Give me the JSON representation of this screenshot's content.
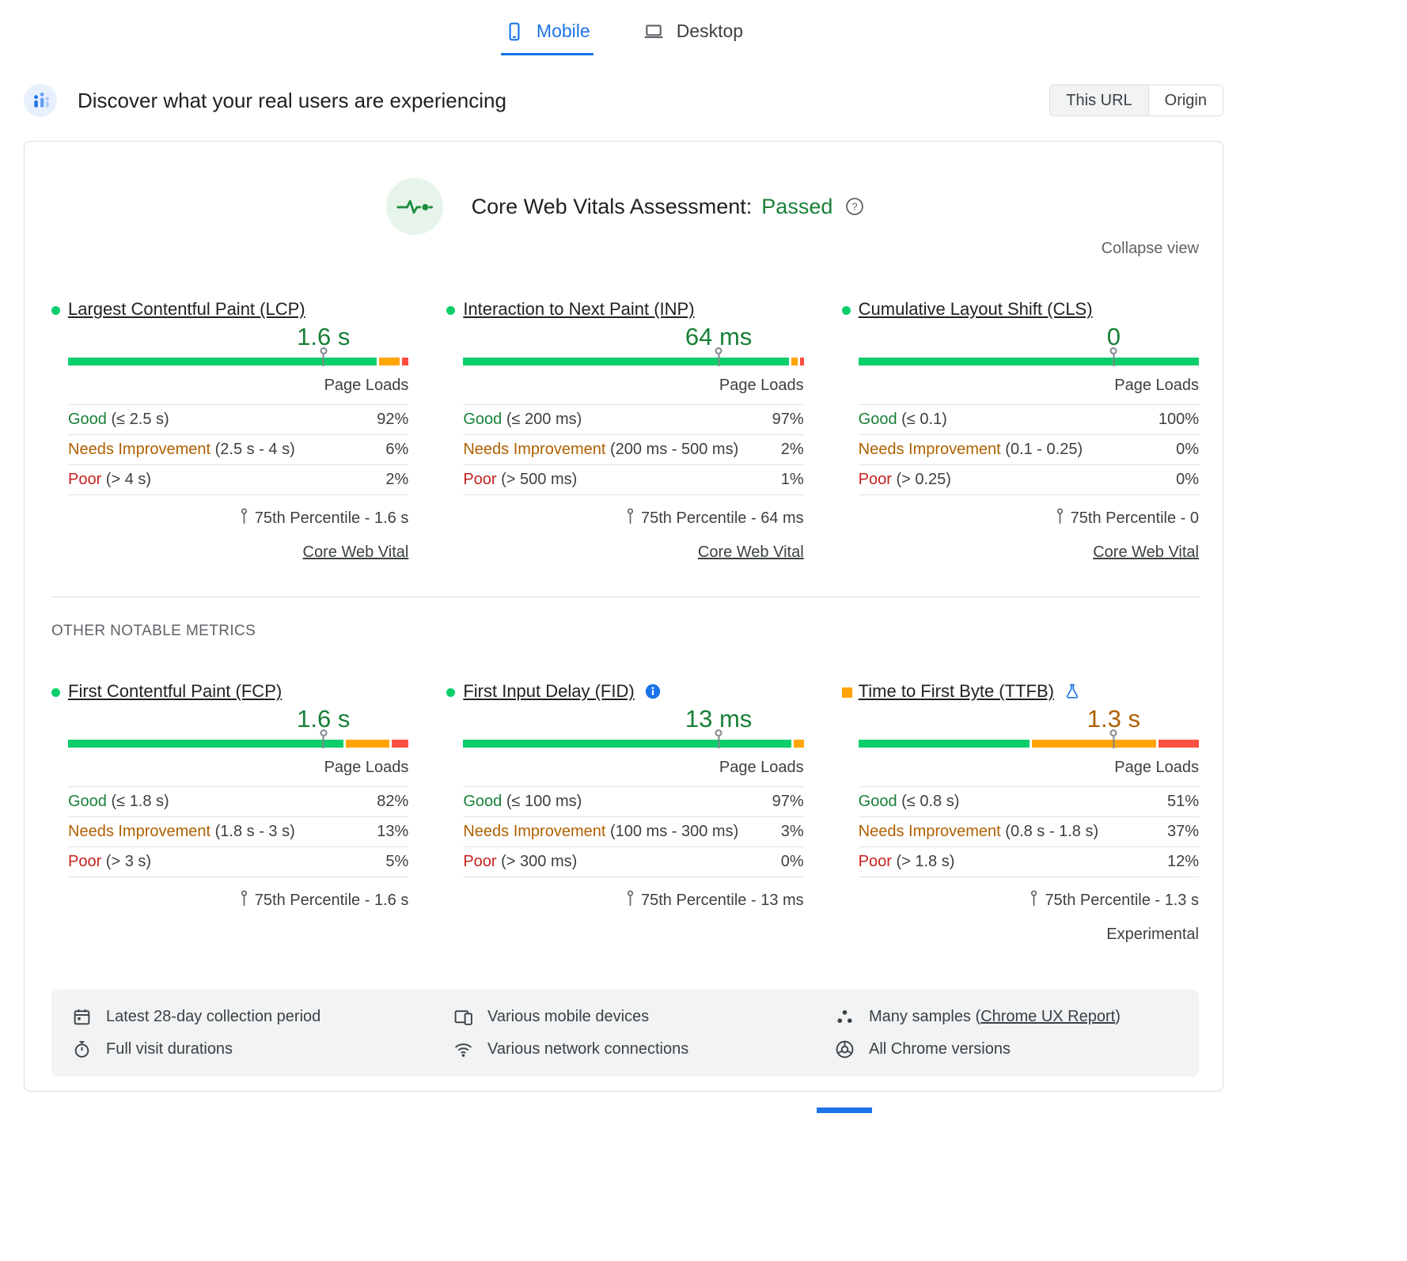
{
  "colors": {
    "good_bar": "#0cce6b",
    "ni_bar": "#ffa400",
    "poor_bar": "#ff4e42",
    "good_text": "#188038",
    "ni_text": "#b06000",
    "poor_text": "#c5221f",
    "accent_blue": "#1a73e8"
  },
  "tabs": {
    "mobile": "Mobile",
    "desktop": "Desktop"
  },
  "header": {
    "title": "Discover what your real users are experiencing",
    "this_url": "This URL",
    "origin": "Origin"
  },
  "assessment": {
    "label": "Core Web Vitals Assessment:",
    "result": "Passed",
    "collapse": "Collapse view"
  },
  "labels": {
    "page_loads": "Page Loads",
    "other_metrics": "OTHER NOTABLE METRICS"
  },
  "metrics": [
    {
      "row": 1,
      "name": "Largest Contentful Paint (LCP)",
      "value": "1.6 s",
      "bullet": "dot-good",
      "value_class": "val-good",
      "badges": [],
      "marker_pct": 75,
      "distribution": [
        92,
        6,
        2
      ],
      "rows": [
        {
          "label": "Good",
          "threshold": "(≤ 2.5 s)",
          "pct": "92%",
          "type": "good"
        },
        {
          "label": "Needs Improvement",
          "threshold": "(2.5 s - 4 s)",
          "pct": "6%",
          "type": "ni"
        },
        {
          "label": "Poor",
          "threshold": "(> 4 s)",
          "pct": "2%",
          "type": "poor"
        }
      ],
      "percentile": "75th Percentile - 1.6 s",
      "footer_link": "Core Web Vital",
      "experimental": null
    },
    {
      "row": 1,
      "name": "Interaction to Next Paint (INP)",
      "value": "64 ms",
      "bullet": "dot-good",
      "value_class": "val-good",
      "badges": [],
      "marker_pct": 75,
      "distribution": [
        97,
        2,
        1
      ],
      "rows": [
        {
          "label": "Good",
          "threshold": "(≤ 200 ms)",
          "pct": "97%",
          "type": "good"
        },
        {
          "label": "Needs Improvement",
          "threshold": "(200 ms - 500 ms)",
          "pct": "2%",
          "type": "ni"
        },
        {
          "label": "Poor",
          "threshold": "(> 500 ms)",
          "pct": "1%",
          "type": "poor"
        }
      ],
      "percentile": "75th Percentile - 64 ms",
      "footer_link": "Core Web Vital",
      "experimental": null
    },
    {
      "row": 1,
      "name": "Cumulative Layout Shift (CLS)",
      "value": "0",
      "bullet": "dot-good",
      "value_class": "val-good",
      "badges": [],
      "marker_pct": 75,
      "distribution": [
        100,
        0,
        0
      ],
      "rows": [
        {
          "label": "Good",
          "threshold": "(≤ 0.1)",
          "pct": "100%",
          "type": "good"
        },
        {
          "label": "Needs Improvement",
          "threshold": "(0.1 - 0.25)",
          "pct": "0%",
          "type": "ni"
        },
        {
          "label": "Poor",
          "threshold": "(> 0.25)",
          "pct": "0%",
          "type": "poor"
        }
      ],
      "percentile": "75th Percentile - 0",
      "footer_link": "Core Web Vital",
      "experimental": null
    },
    {
      "row": 2,
      "name": "First Contentful Paint (FCP)",
      "value": "1.6 s",
      "bullet": "dot-good",
      "value_class": "val-good",
      "badges": [],
      "marker_pct": 75,
      "distribution": [
        82,
        13,
        5
      ],
      "rows": [
        {
          "label": "Good",
          "threshold": "(≤ 1.8 s)",
          "pct": "82%",
          "type": "good"
        },
        {
          "label": "Needs Improvement",
          "threshold": "(1.8 s - 3 s)",
          "pct": "13%",
          "type": "ni"
        },
        {
          "label": "Poor",
          "threshold": "(> 3 s)",
          "pct": "5%",
          "type": "poor"
        }
      ],
      "percentile": "75th Percentile - 1.6 s",
      "footer_link": null,
      "experimental": null
    },
    {
      "row": 2,
      "name": "First Input Delay (FID)",
      "value": "13 ms",
      "bullet": "dot-good",
      "value_class": "val-good",
      "badges": [
        "info"
      ],
      "marker_pct": 75,
      "distribution": [
        97,
        3,
        0
      ],
      "rows": [
        {
          "label": "Good",
          "threshold": "(≤ 100 ms)",
          "pct": "97%",
          "type": "good"
        },
        {
          "label": "Needs Improvement",
          "threshold": "(100 ms - 300 ms)",
          "pct": "3%",
          "type": "ni"
        },
        {
          "label": "Poor",
          "threshold": "(> 300 ms)",
          "pct": "0%",
          "type": "poor"
        }
      ],
      "percentile": "75th Percentile - 13 ms",
      "footer_link": null,
      "experimental": null
    },
    {
      "row": 2,
      "name": "Time to First Byte (TTFB)",
      "value": "1.3 s",
      "bullet": "square-ni",
      "value_class": "val-ni",
      "badges": [
        "flask"
      ],
      "marker_pct": 75,
      "distribution": [
        51,
        37,
        12
      ],
      "rows": [
        {
          "label": "Good",
          "threshold": "(≤ 0.8 s)",
          "pct": "51%",
          "type": "good"
        },
        {
          "label": "Needs Improvement",
          "threshold": "(0.8 s - 1.8 s)",
          "pct": "37%",
          "type": "ni"
        },
        {
          "label": "Poor",
          "threshold": "(> 1.8 s)",
          "pct": "12%",
          "type": "poor"
        }
      ],
      "percentile": "75th Percentile - 1.3 s",
      "footer_link": null,
      "experimental": "Experimental"
    }
  ],
  "footer": {
    "collection_period": "Latest 28-day collection period",
    "visit_durations": "Full visit durations",
    "devices": "Various mobile devices",
    "connections": "Various network connections",
    "samples_prefix": "Many samples (",
    "samples_link": "Chrome UX Report",
    "samples_suffix": ")",
    "chrome_versions": "All Chrome versions"
  }
}
